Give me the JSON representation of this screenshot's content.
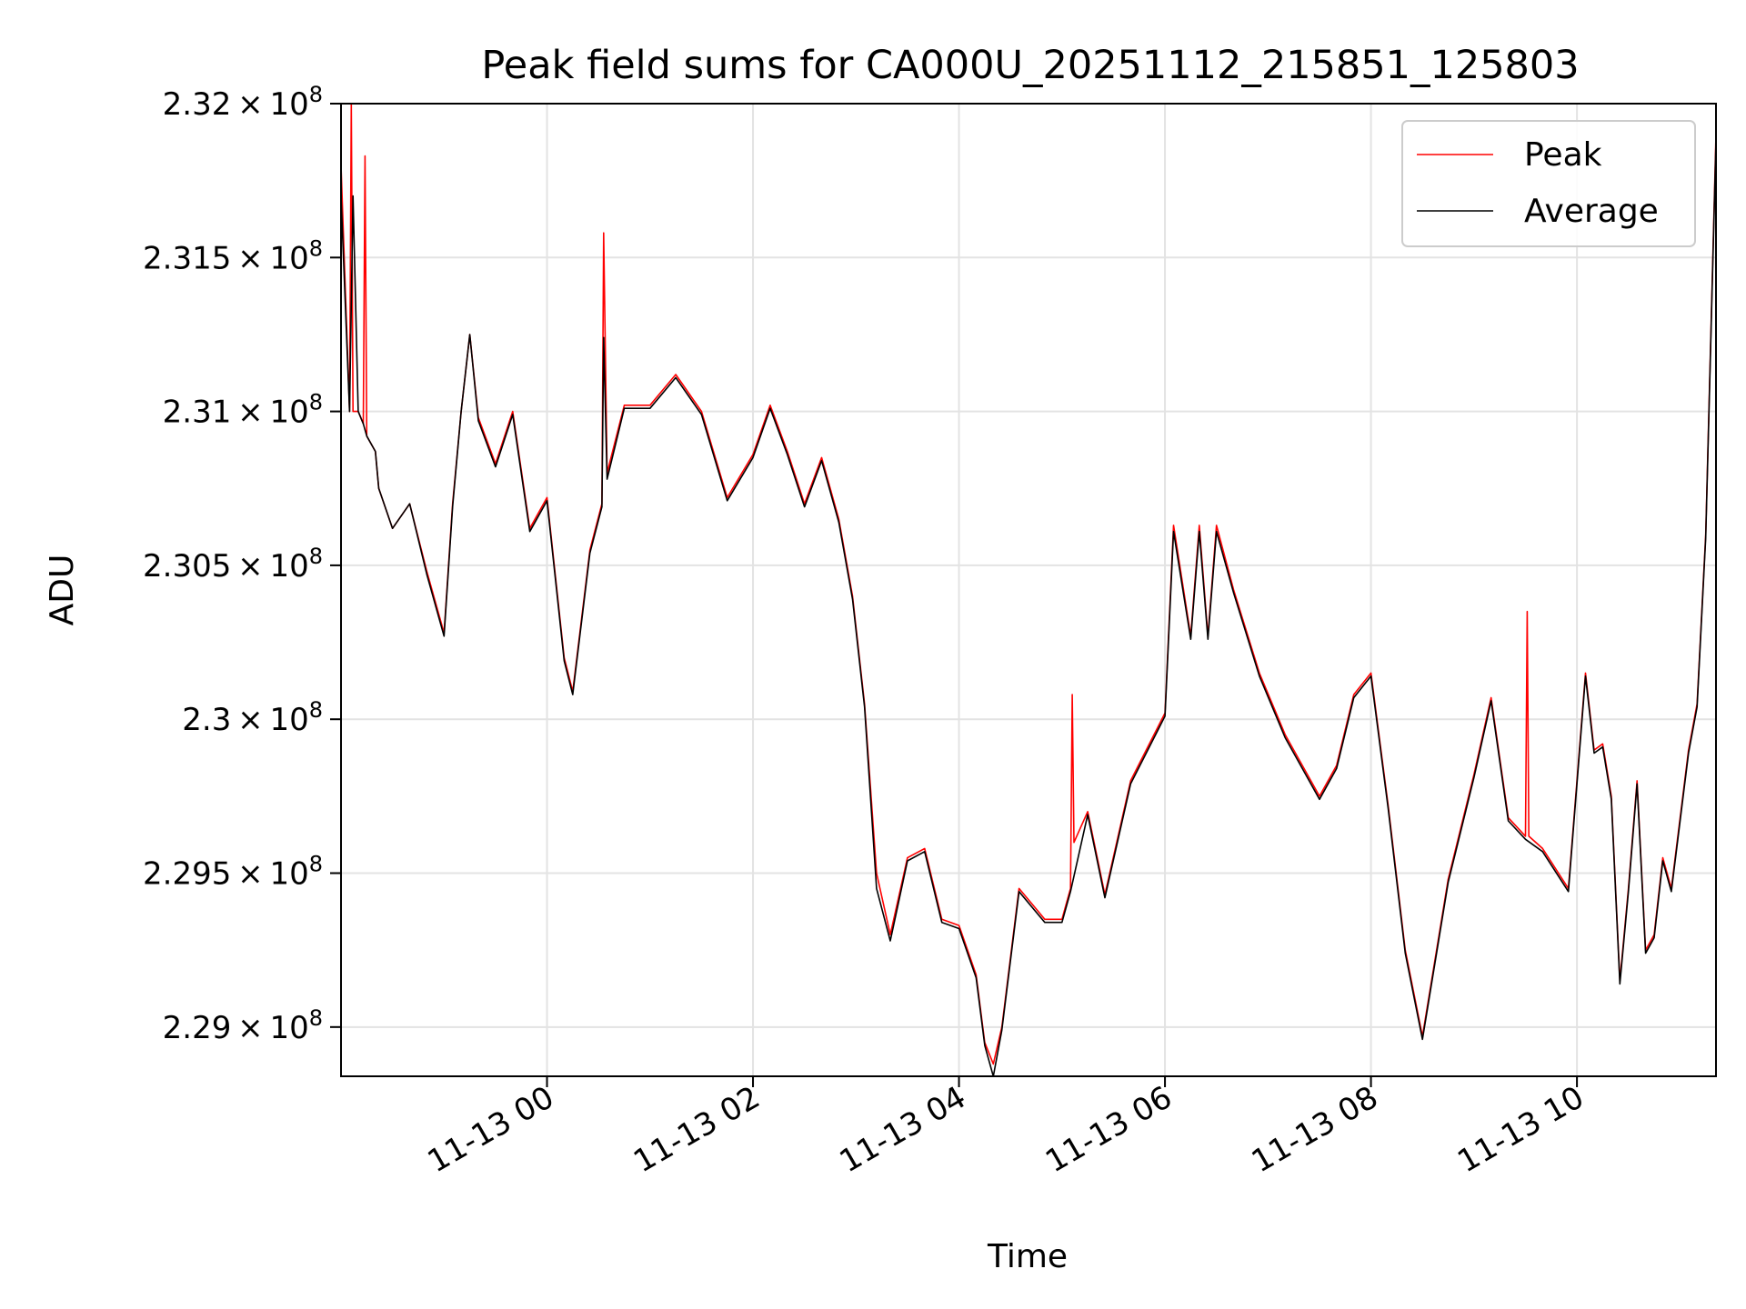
{
  "chart_data": {
    "type": "line",
    "title": "Peak field sums for CA000U_20251112_215851_125803",
    "xlabel": "Time",
    "ylabel": "ADU",
    "xlim": [
      "2025-11-12 22:00",
      "2025-11-13 11:21"
    ],
    "ylim": [
      228840000,
      232000000
    ],
    "grid": true,
    "legend_position": "top-right",
    "x_ticks": [
      {
        "value": "2025-11-13 00:00",
        "label": "11-13 00"
      },
      {
        "value": "2025-11-13 02:00",
        "label": "11-13 02"
      },
      {
        "value": "2025-11-13 04:00",
        "label": "11-13 04"
      },
      {
        "value": "2025-11-13 06:00",
        "label": "11-13 06"
      },
      {
        "value": "2025-11-13 08:00",
        "label": "11-13 08"
      },
      {
        "value": "2025-11-13 10:00",
        "label": "11-13 10"
      }
    ],
    "y_ticks": [
      {
        "value": 229000000,
        "mantissa": "2.29",
        "exponent": "8"
      },
      {
        "value": 229500000,
        "mantissa": "2.295",
        "exponent": "8"
      },
      {
        "value": 230000000,
        "mantissa": "2.3",
        "exponent": "8"
      },
      {
        "value": 230500000,
        "mantissa": "2.305",
        "exponent": "8"
      },
      {
        "value": 231000000,
        "mantissa": "2.31",
        "exponent": "8"
      },
      {
        "value": 231500000,
        "mantissa": "2.315",
        "exponent": "8"
      },
      {
        "value": 232000000,
        "mantissa": "2.32",
        "exponent": "8"
      }
    ],
    "series": [
      {
        "name": "Peak",
        "color": "#ff0000",
        "x": [
          "2025-11-12 22:00",
          "2025-11-12 22:05",
          "2025-11-12 22:06",
          "2025-11-12 22:07",
          "2025-11-12 22:10",
          "2025-11-12 22:13",
          "2025-11-12 22:14",
          "2025-11-12 22:15",
          "2025-11-12 22:20",
          "2025-11-12 22:22",
          "2025-11-12 22:30",
          "2025-11-12 22:40",
          "2025-11-12 22:50",
          "2025-11-12 23:00",
          "2025-11-12 23:05",
          "2025-11-12 23:10",
          "2025-11-12 23:15",
          "2025-11-12 23:20",
          "2025-11-12 23:30",
          "2025-11-12 23:40",
          "2025-11-12 23:50",
          "2025-11-13 00:00",
          "2025-11-13 00:10",
          "2025-11-13 00:15",
          "2025-11-13 00:25",
          "2025-11-13 00:32",
          "2025-11-13 00:33",
          "2025-11-13 00:35",
          "2025-11-13 00:45",
          "2025-11-13 01:00",
          "2025-11-13 01:15",
          "2025-11-13 01:30",
          "2025-11-13 01:45",
          "2025-11-13 02:00",
          "2025-11-13 02:10",
          "2025-11-13 02:20",
          "2025-11-13 02:30",
          "2025-11-13 02:40",
          "2025-11-13 02:50",
          "2025-11-13 02:58",
          "2025-11-13 03:05",
          "2025-11-13 03:12",
          "2025-11-13 03:20",
          "2025-11-13 03:30",
          "2025-11-13 03:40",
          "2025-11-13 03:50",
          "2025-11-13 04:00",
          "2025-11-13 04:10",
          "2025-11-13 04:15",
          "2025-11-13 04:20",
          "2025-11-13 04:25",
          "2025-11-13 04:35",
          "2025-11-13 04:50",
          "2025-11-13 05:00",
          "2025-11-13 05:05",
          "2025-11-13 05:06",
          "2025-11-13 05:07",
          "2025-11-13 05:15",
          "2025-11-13 05:25",
          "2025-11-13 05:40",
          "2025-11-13 06:00",
          "2025-11-13 06:05",
          "2025-11-13 06:15",
          "2025-11-13 06:20",
          "2025-11-13 06:25",
          "2025-11-13 06:30",
          "2025-11-13 06:40",
          "2025-11-13 06:55",
          "2025-11-13 07:10",
          "2025-11-13 07:20",
          "2025-11-13 07:30",
          "2025-11-13 07:40",
          "2025-11-13 07:50",
          "2025-11-13 08:00",
          "2025-11-13 08:10",
          "2025-11-13 08:20",
          "2025-11-13 08:30",
          "2025-11-13 08:45",
          "2025-11-13 09:00",
          "2025-11-13 09:10",
          "2025-11-13 09:20",
          "2025-11-13 09:30",
          "2025-11-13 09:31",
          "2025-11-13 09:32",
          "2025-11-13 09:40",
          "2025-11-13 09:55",
          "2025-11-13 10:05",
          "2025-11-13 10:10",
          "2025-11-13 10:15",
          "2025-11-13 10:20",
          "2025-11-13 10:25",
          "2025-11-13 10:30",
          "2025-11-13 10:35",
          "2025-11-13 10:40",
          "2025-11-13 10:45",
          "2025-11-13 10:50",
          "2025-11-13 10:55",
          "2025-11-13 11:05",
          "2025-11-13 11:10",
          "2025-11-13 11:15",
          "2025-11-13 11:21"
        ],
        "values": [
          231800000,
          231000000,
          232000000,
          231000000,
          231000000,
          230960000,
          231830000,
          230920000,
          230870000,
          230750000,
          230620000,
          230700000,
          230480000,
          230280000,
          230700000,
          231000000,
          231250000,
          230980000,
          230830000,
          231000000,
          230620000,
          230720000,
          230200000,
          230090000,
          230550000,
          230700000,
          231580000,
          230800000,
          231020000,
          231020000,
          231120000,
          231000000,
          230720000,
          230860000,
          231020000,
          230870000,
          230700000,
          230850000,
          230650000,
          230400000,
          230050000,
          229500000,
          229300000,
          229550000,
          229580000,
          229350000,
          229330000,
          229170000,
          228950000,
          228880000,
          229000000,
          229450000,
          229350000,
          229350000,
          229450000,
          230080000,
          229600000,
          229700000,
          229430000,
          229800000,
          230020000,
          230630000,
          230270000,
          230630000,
          230270000,
          230630000,
          230420000,
          230150000,
          229950000,
          229850000,
          229750000,
          229850000,
          230080000,
          230150000,
          229720000,
          229250000,
          228970000,
          229480000,
          229820000,
          230070000,
          229680000,
          229620000,
          230350000,
          229620000,
          229580000,
          229450000,
          230150000,
          229900000,
          229920000,
          229750000,
          229150000,
          229450000,
          229800000,
          229250000,
          229300000,
          229550000,
          229450000,
          229900000,
          230050000,
          230600000,
          231900000
        ]
      },
      {
        "name": "Average",
        "color": "#000000",
        "x": [
          "2025-11-12 22:00",
          "2025-11-12 22:05",
          "2025-11-12 22:07",
          "2025-11-12 22:10",
          "2025-11-12 22:13",
          "2025-11-12 22:15",
          "2025-11-12 22:20",
          "2025-11-12 22:22",
          "2025-11-12 22:30",
          "2025-11-12 22:40",
          "2025-11-12 22:50",
          "2025-11-12 23:00",
          "2025-11-12 23:05",
          "2025-11-12 23:10",
          "2025-11-12 23:15",
          "2025-11-12 23:20",
          "2025-11-12 23:30",
          "2025-11-12 23:40",
          "2025-11-12 23:50",
          "2025-11-13 00:00",
          "2025-11-13 00:10",
          "2025-11-13 00:15",
          "2025-11-13 00:25",
          "2025-11-13 00:32",
          "2025-11-13 00:33",
          "2025-11-13 00:35",
          "2025-11-13 00:45",
          "2025-11-13 01:00",
          "2025-11-13 01:15",
          "2025-11-13 01:30",
          "2025-11-13 01:45",
          "2025-11-13 02:00",
          "2025-11-13 02:10",
          "2025-11-13 02:20",
          "2025-11-13 02:30",
          "2025-11-13 02:40",
          "2025-11-13 02:50",
          "2025-11-13 02:58",
          "2025-11-13 03:05",
          "2025-11-13 03:12",
          "2025-11-13 03:20",
          "2025-11-13 03:30",
          "2025-11-13 03:40",
          "2025-11-13 03:50",
          "2025-11-13 04:00",
          "2025-11-13 04:10",
          "2025-11-13 04:15",
          "2025-11-13 04:20",
          "2025-11-13 04:25",
          "2025-11-13 04:35",
          "2025-11-13 04:50",
          "2025-11-13 05:00",
          "2025-11-13 05:05",
          "2025-11-13 05:15",
          "2025-11-13 05:25",
          "2025-11-13 05:40",
          "2025-11-13 06:00",
          "2025-11-13 06:05",
          "2025-11-13 06:15",
          "2025-11-13 06:20",
          "2025-11-13 06:25",
          "2025-11-13 06:30",
          "2025-11-13 06:40",
          "2025-11-13 06:55",
          "2025-11-13 07:10",
          "2025-11-13 07:20",
          "2025-11-13 07:30",
          "2025-11-13 07:40",
          "2025-11-13 07:50",
          "2025-11-13 08:00",
          "2025-11-13 08:10",
          "2025-11-13 08:20",
          "2025-11-13 08:30",
          "2025-11-13 08:45",
          "2025-11-13 09:00",
          "2025-11-13 09:10",
          "2025-11-13 09:20",
          "2025-11-13 09:30",
          "2025-11-13 09:40",
          "2025-11-13 09:55",
          "2025-11-13 10:05",
          "2025-11-13 10:10",
          "2025-11-13 10:15",
          "2025-11-13 10:20",
          "2025-11-13 10:25",
          "2025-11-13 10:30",
          "2025-11-13 10:35",
          "2025-11-13 10:40",
          "2025-11-13 10:45",
          "2025-11-13 10:50",
          "2025-11-13 10:55",
          "2025-11-13 11:05",
          "2025-11-13 11:10",
          "2025-11-13 11:15",
          "2025-11-13 11:21"
        ],
        "values": [
          231700000,
          231000000,
          231700000,
          231000000,
          230960000,
          230920000,
          230870000,
          230750000,
          230620000,
          230700000,
          230470000,
          230270000,
          230690000,
          231000000,
          231250000,
          230970000,
          230820000,
          230990000,
          230610000,
          230710000,
          230190000,
          230080000,
          230540000,
          230690000,
          231240000,
          230780000,
          231010000,
          231010000,
          231110000,
          230990000,
          230710000,
          230850000,
          231010000,
          230860000,
          230690000,
          230840000,
          230640000,
          230390000,
          230040000,
          229450000,
          229280000,
          229540000,
          229570000,
          229340000,
          229320000,
          229160000,
          228940000,
          228840000,
          228990000,
          229440000,
          229340000,
          229340000,
          229440000,
          229690000,
          229420000,
          229790000,
          230010000,
          230610000,
          230260000,
          230610000,
          230260000,
          230610000,
          230410000,
          230140000,
          229940000,
          229840000,
          229740000,
          229840000,
          230070000,
          230140000,
          229710000,
          229240000,
          228960000,
          229470000,
          229810000,
          230060000,
          229670000,
          229610000,
          229570000,
          229440000,
          230140000,
          229890000,
          229910000,
          229740000,
          229140000,
          229440000,
          229790000,
          229240000,
          229290000,
          229540000,
          229440000,
          229890000,
          230040000,
          230590000,
          231880000
        ]
      }
    ]
  }
}
